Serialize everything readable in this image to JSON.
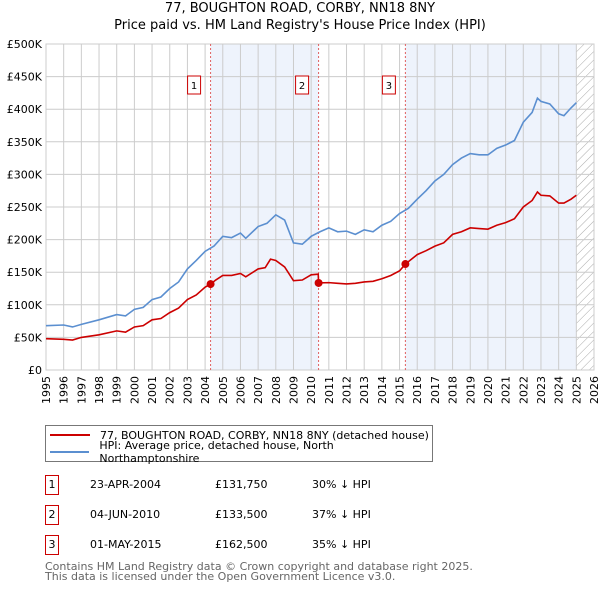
{
  "chart_data": {
    "type": "line",
    "title": "77, BOUGHTON ROAD, CORBY, NN18 8NY",
    "subtitle": "Price paid vs. HM Land Registry's House Price Index (HPI)",
    "xlim": [
      1995,
      2026
    ],
    "ylim": [
      0,
      500000
    ],
    "grid": true,
    "x_ticks": [
      "1995",
      "1996",
      "1997",
      "1998",
      "1999",
      "2000",
      "2001",
      "2002",
      "2003",
      "2004",
      "2005",
      "2006",
      "2007",
      "2008",
      "2009",
      "2010",
      "2011",
      "2012",
      "2013",
      "2014",
      "2015",
      "2016",
      "2017",
      "2018",
      "2019",
      "2020",
      "2021",
      "2022",
      "2023",
      "2024",
      "2025",
      "2026"
    ],
    "y_ticks": [
      {
        "v": 0,
        "label": "£0"
      },
      {
        "v": 50000,
        "label": "£50K"
      },
      {
        "v": 100000,
        "label": "£100K"
      },
      {
        "v": 150000,
        "label": "£150K"
      },
      {
        "v": 200000,
        "label": "£200K"
      },
      {
        "v": 250000,
        "label": "£250K"
      },
      {
        "v": 300000,
        "label": "£300K"
      },
      {
        "v": 350000,
        "label": "£350K"
      },
      {
        "v": 400000,
        "label": "£400K"
      },
      {
        "v": 450000,
        "label": "£450K"
      },
      {
        "v": 500000,
        "label": "£500K"
      }
    ],
    "shaded_ranges": [
      [
        2004.31,
        2010.42
      ],
      [
        2015.33,
        2025.0
      ]
    ],
    "forecast_hatch_from": 2025.0,
    "series": [
      {
        "name": "77, BOUGHTON ROAD, CORBY, NN18 8NY (detached house)",
        "color": "#cc0000",
        "x": [
          1995,
          1996,
          1996.5,
          1997,
          1998,
          1999,
          1999.5,
          2000,
          2000.5,
          2001,
          2001.5,
          2002,
          2002.5,
          2003,
          2003.5,
          2004,
          2004.31,
          2004.6,
          2005,
          2005.5,
          2006,
          2006.3,
          2007,
          2007.4,
          2007.7,
          2008,
          2008.5,
          2009,
          2009.5,
          2010,
          2010.4,
          2010.42,
          2011,
          2011.5,
          2012,
          2012.5,
          2013,
          2013.5,
          2014,
          2014.5,
          2015,
          2015.33,
          2016,
          2016.5,
          2017,
          2017.5,
          2018,
          2018.5,
          2019,
          2019.5,
          2020,
          2020.5,
          2021,
          2021.5,
          2022,
          2022.5,
          2022.8,
          2023,
          2023.5,
          2024,
          2024.3,
          2024.7,
          2025
        ],
        "values": [
          48000,
          47000,
          46000,
          50000,
          54000,
          60000,
          58000,
          66000,
          68000,
          77000,
          79000,
          88000,
          95000,
          108000,
          115000,
          127000,
          131750,
          138000,
          145000,
          145000,
          148000,
          143000,
          155000,
          157000,
          170000,
          168000,
          158000,
          137000,
          138000,
          146000,
          147000,
          133500,
          134000,
          133000,
          132000,
          133000,
          135000,
          136000,
          140000,
          145000,
          152000,
          162500,
          177000,
          183000,
          190000,
          195000,
          208000,
          212000,
          218000,
          217000,
          216000,
          222000,
          226000,
          232000,
          250000,
          260000,
          273000,
          268000,
          267000,
          256000,
          256000,
          262000,
          268000
        ]
      },
      {
        "name": "HPI: Average price, detached house, North Northamptonshire",
        "color": "#5b8fd0",
        "x": [
          1995,
          1996,
          1996.5,
          1997,
          1998,
          1999,
          1999.5,
          2000,
          2000.5,
          2001,
          2001.5,
          2002,
          2002.5,
          2003,
          2003.5,
          2004,
          2004.5,
          2005,
          2005.5,
          2006,
          2006.3,
          2007,
          2007.5,
          2008,
          2008.5,
          2009,
          2009.5,
          2010,
          2010.5,
          2011,
          2011.5,
          2012,
          2012.5,
          2013,
          2013.5,
          2014,
          2014.5,
          2015,
          2015.5,
          2016,
          2016.5,
          2017,
          2017.5,
          2018,
          2018.5,
          2019,
          2019.5,
          2020,
          2020.5,
          2021,
          2021.5,
          2022,
          2022.5,
          2022.8,
          2023,
          2023.5,
          2024,
          2024.3,
          2024.7,
          2025
        ],
        "values": [
          68000,
          69000,
          66000,
          70000,
          77000,
          85000,
          83000,
          93000,
          96000,
          108000,
          112000,
          125000,
          135000,
          155000,
          168000,
          182000,
          190000,
          205000,
          203000,
          210000,
          202000,
          220000,
          225000,
          238000,
          230000,
          195000,
          193000,
          205000,
          212000,
          218000,
          212000,
          213000,
          208000,
          215000,
          212000,
          222000,
          228000,
          240000,
          248000,
          262000,
          275000,
          290000,
          300000,
          315000,
          325000,
          332000,
          330000,
          330000,
          340000,
          345000,
          352000,
          380000,
          395000,
          417000,
          412000,
          408000,
          393000,
          390000,
          402000,
          410000
        ]
      }
    ],
    "annotations": [
      {
        "label": "1",
        "x": 2004.31,
        "value": 131750
      },
      {
        "label": "2",
        "x": 2010.42,
        "value": 133500
      },
      {
        "label": "3",
        "x": 2015.33,
        "value": 162500
      }
    ]
  },
  "legend": [
    {
      "label": "77, BOUGHTON ROAD, CORBY, NN18 8NY (detached house)",
      "color": "#cc0000"
    },
    {
      "label": "HPI: Average price, detached house, North Northamptonshire",
      "color": "#5b8fd0"
    }
  ],
  "transactions": [
    {
      "num": "1",
      "date": "23-APR-2004",
      "price": "£131,750",
      "hpi": "30% ↓ HPI"
    },
    {
      "num": "2",
      "date": "04-JUN-2010",
      "price": "£133,500",
      "hpi": "37% ↓ HPI"
    },
    {
      "num": "3",
      "date": "01-MAY-2015",
      "price": "£162,500",
      "hpi": "35% ↓ HPI"
    }
  ],
  "footer": {
    "line1": "Contains HM Land Registry data © Crown copyright and database right 2025.",
    "line2": "This data is licensed under the Open Government Licence v3.0."
  }
}
